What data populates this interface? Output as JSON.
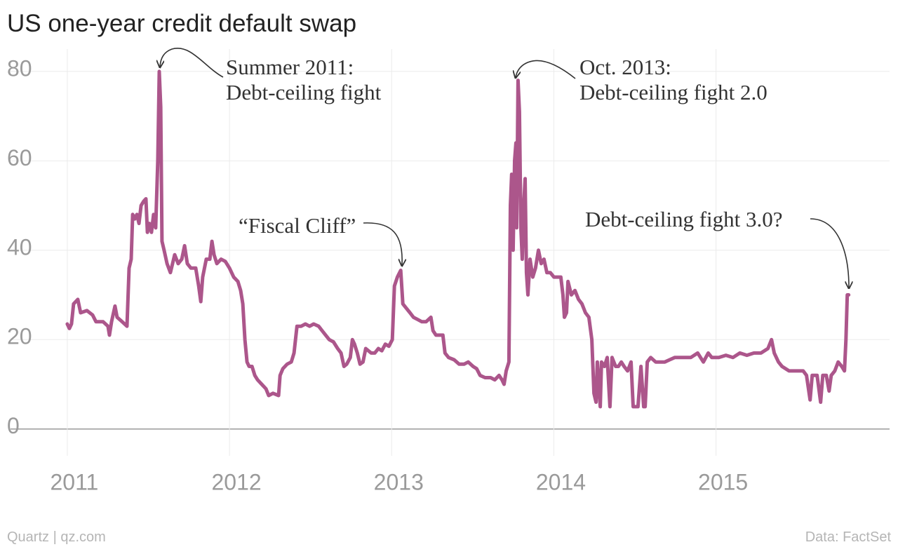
{
  "chart_data": {
    "type": "line",
    "title": "US one-year credit default swap",
    "color": "#ac568b",
    "grid": true,
    "xlim": [
      2010.65,
      2016.07
    ],
    "xticks": [
      2011,
      2012,
      2013,
      2014,
      2015
    ],
    "ylim": [
      -6,
      85
    ],
    "yticks": [
      0,
      20,
      40,
      60,
      80
    ],
    "annotations": [
      {
        "lines": [
          "Summer 2011:",
          "Debt-ceiling fight"
        ]
      },
      {
        "lines": [
          "Oct. 2013:",
          "Debt-ceiling fight 2.0"
        ]
      },
      {
        "lines": [
          "“Fiscal Cliff”"
        ]
      },
      {
        "lines": [
          "Debt-ceiling fight 3.0?"
        ]
      }
    ],
    "source": "Data: FactSet",
    "credit": "Quartz | qz.com",
    "x": [
      2011.0,
      2011.013,
      2011.026,
      2011.039,
      2011.065,
      2011.082,
      2011.121,
      2011.156,
      2011.177,
      2011.221,
      2011.251,
      2011.26,
      2011.273,
      2011.294,
      2011.307,
      2011.338,
      2011.368,
      2011.381,
      2011.394,
      2011.403,
      2011.416,
      2011.429,
      2011.442,
      2011.455,
      2011.472,
      2011.485,
      2011.494,
      2011.506,
      2011.519,
      2011.532,
      2011.545,
      2011.558,
      2011.567,
      2011.576,
      2011.584,
      2011.597,
      2011.615,
      2011.636,
      2011.662,
      2011.684,
      2011.706,
      2011.723,
      2011.74,
      2011.762,
      2011.792,
      2011.81,
      2011.823,
      2011.835,
      2011.857,
      2011.879,
      2011.892,
      2011.905,
      2011.922,
      2011.948,
      2011.974,
      2012.0,
      2012.026,
      2012.052,
      2012.069,
      2012.082,
      2012.095,
      2012.108,
      2012.121,
      2012.139,
      2012.156,
      2012.173,
      2012.199,
      2012.225,
      2012.242,
      2012.268,
      2012.303,
      2012.312,
      2012.329,
      2012.355,
      2012.381,
      2012.398,
      2012.416,
      2012.442,
      2012.468,
      2012.494,
      2012.519,
      2012.55,
      2012.571,
      2012.593,
      2012.615,
      2012.641,
      2012.667,
      2012.688,
      2012.706,
      2012.723,
      2012.745,
      2012.758,
      2012.771,
      2012.788,
      2012.805,
      2012.823,
      2012.84,
      2012.874,
      2012.896,
      2012.918,
      2012.939,
      2012.961,
      2012.983,
      2013.004,
      2013.017,
      2013.035,
      2013.056,
      2013.069,
      2013.091,
      2013.113,
      2013.134,
      2013.16,
      2013.186,
      2013.212,
      2013.242,
      2013.255,
      2013.273,
      2013.316,
      2013.329,
      2013.351,
      2013.385,
      2013.416,
      2013.446,
      2013.472,
      2013.502,
      2013.524,
      2013.545,
      2013.576,
      2013.61,
      2013.636,
      2013.662,
      2013.68,
      2013.693,
      2013.706,
      2013.723,
      2013.732,
      2013.74,
      2013.749,
      2013.758,
      2013.766,
      2013.771,
      2013.779,
      2013.788,
      2013.797,
      2013.805,
      2013.814,
      2013.823,
      2013.831,
      2013.84,
      2013.853,
      2013.87,
      2013.887,
      2013.905,
      2013.922,
      2013.939,
      2013.957,
      2013.978,
      2014.0,
      2014.022,
      2014.043,
      2014.056,
      2014.065,
      2014.078,
      2014.087,
      2014.108,
      2014.13,
      2014.152,
      2014.173,
      2014.195,
      2014.216,
      2014.234,
      2014.247,
      2014.26,
      2014.268,
      2014.286,
      2014.294,
      2014.312,
      2014.329,
      2014.346,
      2014.359,
      2014.381,
      2014.398,
      2014.416,
      2014.433,
      2014.455,
      2014.476,
      2014.489,
      2014.502,
      2014.519,
      2014.537,
      2014.554,
      2014.563,
      2014.576,
      2014.597,
      2014.628,
      2014.649,
      2014.684,
      2014.714,
      2014.745,
      2014.779,
      2014.814,
      2014.844,
      2014.887,
      2014.922,
      2014.952,
      2014.974,
      2015.017,
      2015.061,
      2015.104,
      2015.147,
      2015.19,
      2015.234,
      2015.277,
      2015.32,
      2015.342,
      2015.359,
      2015.385,
      2015.407,
      2015.45,
      2015.494,
      2015.537,
      2015.558,
      2015.58,
      2015.593,
      2015.623,
      2015.645,
      2015.658,
      2015.68,
      2015.697,
      2015.71,
      2015.732,
      2015.753,
      2015.775,
      2015.792,
      2015.801,
      2015.809,
      2015.818
    ],
    "values": [
      23.5,
      22.5,
      23.5,
      28,
      29,
      26,
      26.5,
      25.5,
      24,
      24,
      23,
      21,
      24,
      27.5,
      25,
      24,
      23,
      36,
      38,
      48,
      47,
      48,
      46,
      50,
      51,
      51.5,
      44,
      46,
      44,
      48,
      45,
      60,
      80,
      72,
      42,
      40,
      37,
      35,
      39,
      37,
      38,
      41,
      37,
      36,
      36,
      32,
      28.5,
      34,
      38,
      38,
      42,
      39,
      37,
      38,
      37.5,
      36,
      34,
      33,
      31,
      28,
      20,
      15,
      14,
      14,
      12,
      11,
      10,
      9,
      7.5,
      8,
      7.5,
      12,
      13.5,
      14.5,
      15,
      17,
      23,
      23,
      23.5,
      23,
      23.5,
      23,
      22,
      21,
      20,
      19.5,
      18,
      17,
      14,
      14.5,
      16,
      20,
      19,
      17,
      14.5,
      15,
      18,
      17,
      17,
      18,
      17.5,
      19,
      18.5,
      20,
      32,
      34,
      35.5,
      28,
      27,
      26,
      25,
      24.5,
      24,
      24,
      25,
      22,
      21,
      21,
      17,
      16,
      15.5,
      14.5,
      14.5,
      15,
      14,
      13.5,
      12,
      11.5,
      11.5,
      11,
      12,
      11,
      10,
      13,
      15,
      50,
      57,
      40,
      60,
      64,
      45,
      78,
      71,
      45,
      38,
      50,
      56,
      35,
      30,
      38,
      34,
      36,
      40,
      37,
      38,
      35,
      35,
      34,
      34,
      34,
      30,
      25,
      26,
      33,
      30,
      31,
      29,
      28,
      26,
      25,
      20,
      8,
      6,
      15,
      5,
      15,
      14,
      16,
      5,
      16,
      14,
      14,
      15,
      14,
      13,
      15,
      5,
      5,
      5,
      14,
      5,
      5,
      15,
      16,
      15,
      15,
      15,
      15.5,
      16,
      16,
      16,
      16,
      17,
      15,
      17,
      16,
      16,
      16.5,
      16,
      17,
      16.5,
      17,
      17,
      18,
      20,
      17,
      15,
      14,
      13,
      13,
      13,
      12,
      6.5,
      12,
      12,
      6,
      12,
      12,
      8.5,
      12,
      13,
      15,
      14,
      13,
      20,
      30,
      30
    ]
  }
}
